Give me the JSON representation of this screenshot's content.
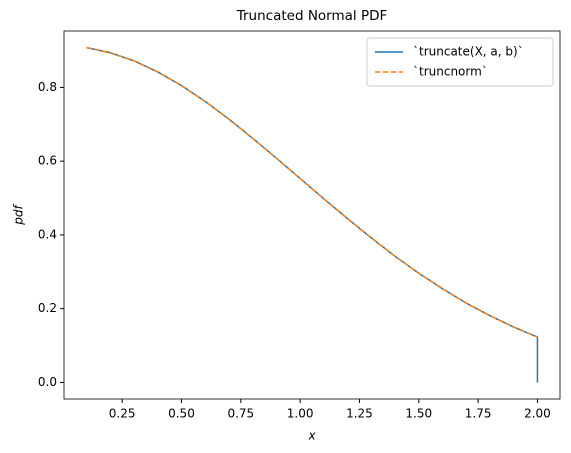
{
  "chart_data": {
    "type": "line",
    "title": "Truncated Normal PDF",
    "x_label": "x",
    "y_label": "pdf",
    "series": [
      {
        "name": "`truncate(X, a, b)`",
        "color": "#1f77b4",
        "linestyle": "solid",
        "x": [
          0.1,
          0.2,
          0.3,
          0.4,
          0.5,
          0.6,
          0.7,
          0.8,
          0.9,
          1.0,
          1.1,
          1.2,
          1.3,
          1.4,
          1.5,
          1.6,
          1.7,
          1.8,
          1.9,
          2.0,
          2.0
        ],
        "values": [
          0.908,
          0.894,
          0.872,
          0.842,
          0.805,
          0.762,
          0.714,
          0.662,
          0.608,
          0.553,
          0.498,
          0.444,
          0.392,
          0.342,
          0.296,
          0.254,
          0.215,
          0.181,
          0.15,
          0.123,
          0
        ]
      },
      {
        "name": "`truncnorm`",
        "color": "#ff7f0e",
        "linestyle": "dashed",
        "x": [
          0.1,
          0.2,
          0.3,
          0.4,
          0.5,
          0.6,
          0.7,
          0.8,
          0.9,
          1.0,
          1.1,
          1.2,
          1.3,
          1.4,
          1.5,
          1.6,
          1.7,
          1.8,
          1.9,
          2.0
        ],
        "values": [
          0.908,
          0.894,
          0.872,
          0.842,
          0.805,
          0.762,
          0.714,
          0.662,
          0.608,
          0.553,
          0.498,
          0.444,
          0.392,
          0.342,
          0.296,
          0.254,
          0.215,
          0.181,
          0.15,
          0.123
        ]
      }
    ],
    "xlim": [
      0.005,
      2.095
    ],
    "ylim": [
      -0.045,
      0.953
    ],
    "xticks": [
      0.25,
      {
        "value": 0.5,
        "label": "0.50"
      },
      0.75,
      {
        "value": 1,
        "label": "1.00"
      },
      1.25,
      {
        "value": 1.5,
        "label": "1.50"
      },
      1.75,
      {
        "value": 2,
        "label": "2.00"
      }
    ],
    "yticks": [
      {
        "value": 0,
        "label": "0.0"
      },
      0.2,
      0.4,
      0.6,
      0.8
    ],
    "grid": false,
    "legend": "upper right"
  }
}
